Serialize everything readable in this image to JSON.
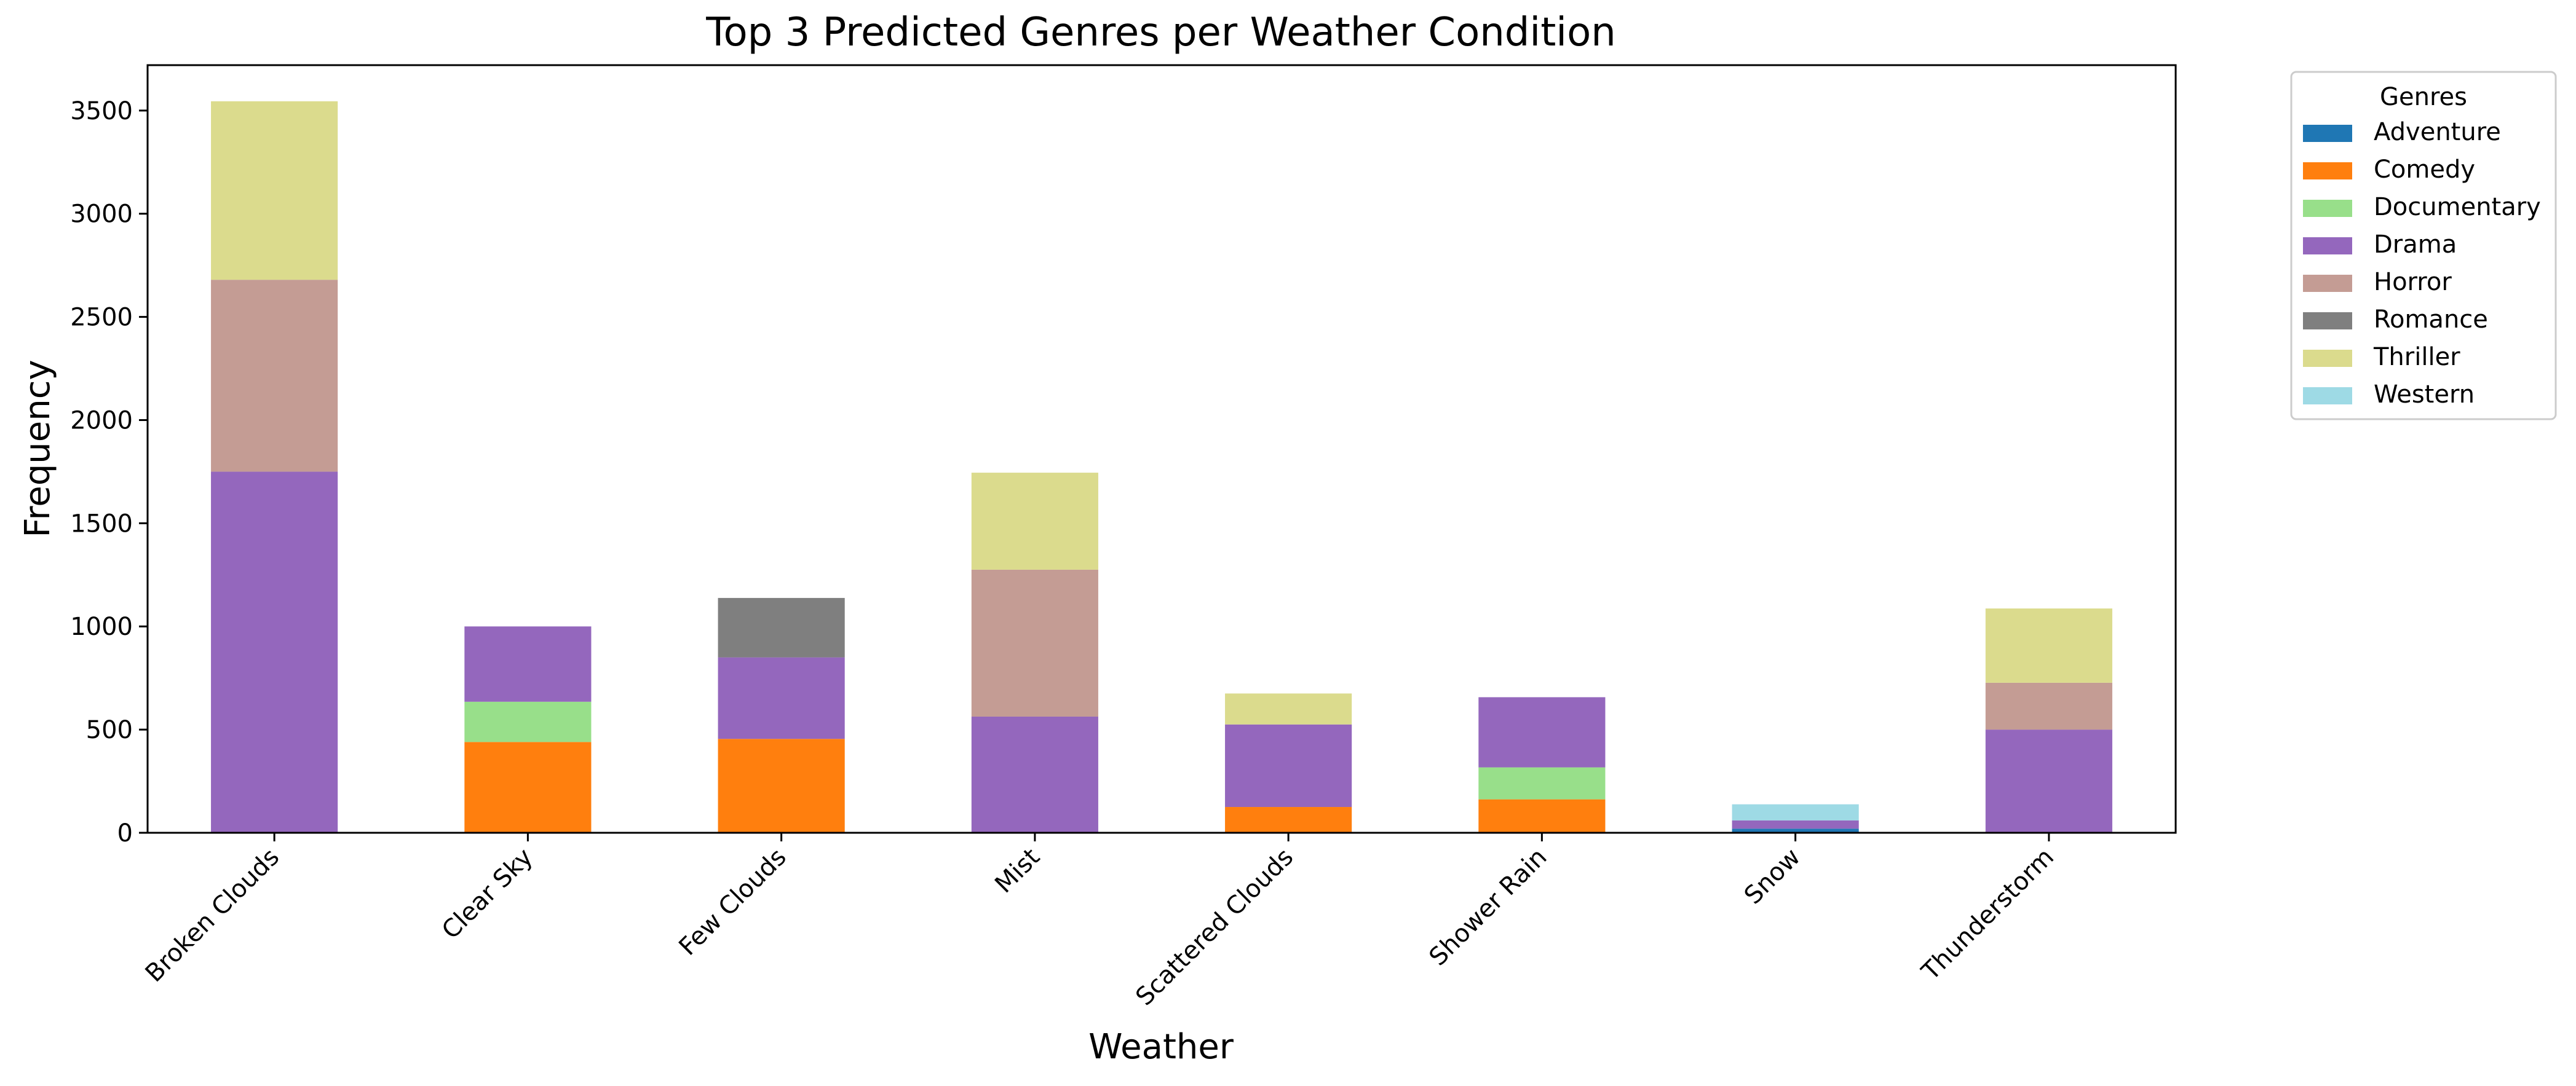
{
  "chart_data": {
    "type": "bar",
    "stacked": true,
    "title": "Top 3 Predicted Genres per Weather Condition",
    "xlabel": "Weather",
    "ylabel": "Frequency",
    "ylim": [
      0,
      3720
    ],
    "yticks": [
      0,
      500,
      1000,
      1500,
      2000,
      2500,
      3000,
      3500
    ],
    "grid": false,
    "legend": {
      "title": "Genres",
      "position": "outside-top-right"
    },
    "categories": [
      "Broken Clouds",
      "Clear Sky",
      "Few Clouds",
      "Mist",
      "Scattered Clouds",
      "Shower Rain",
      "Snow",
      "Thunderstorm"
    ],
    "series": [
      {
        "name": "Adventure",
        "color": "#1f77b4",
        "values": [
          0,
          0,
          0,
          0,
          0,
          0,
          20,
          0
        ]
      },
      {
        "name": "Comedy",
        "color": "#ff7f0e",
        "values": [
          0,
          440,
          455,
          0,
          125,
          162,
          0,
          0
        ]
      },
      {
        "name": "Documentary",
        "color": "#98df8a",
        "values": [
          0,
          195,
          0,
          0,
          0,
          155,
          0,
          0
        ]
      },
      {
        "name": "Drama",
        "color": "#9467bd",
        "values": [
          1750,
          365,
          395,
          563,
          400,
          340,
          40,
          500
        ]
      },
      {
        "name": "Horror",
        "color": "#c49c94",
        "values": [
          930,
          0,
          0,
          712,
          0,
          0,
          0,
          227
        ]
      },
      {
        "name": "Romance",
        "color": "#7f7f7f",
        "values": [
          0,
          0,
          288,
          0,
          0,
          0,
          0,
          0
        ]
      },
      {
        "name": "Thriller",
        "color": "#dbdb8d",
        "values": [
          865,
          0,
          0,
          470,
          150,
          0,
          0,
          360
        ]
      },
      {
        "name": "Western",
        "color": "#9edae5",
        "values": [
          0,
          0,
          0,
          0,
          0,
          0,
          78,
          0
        ]
      }
    ]
  }
}
